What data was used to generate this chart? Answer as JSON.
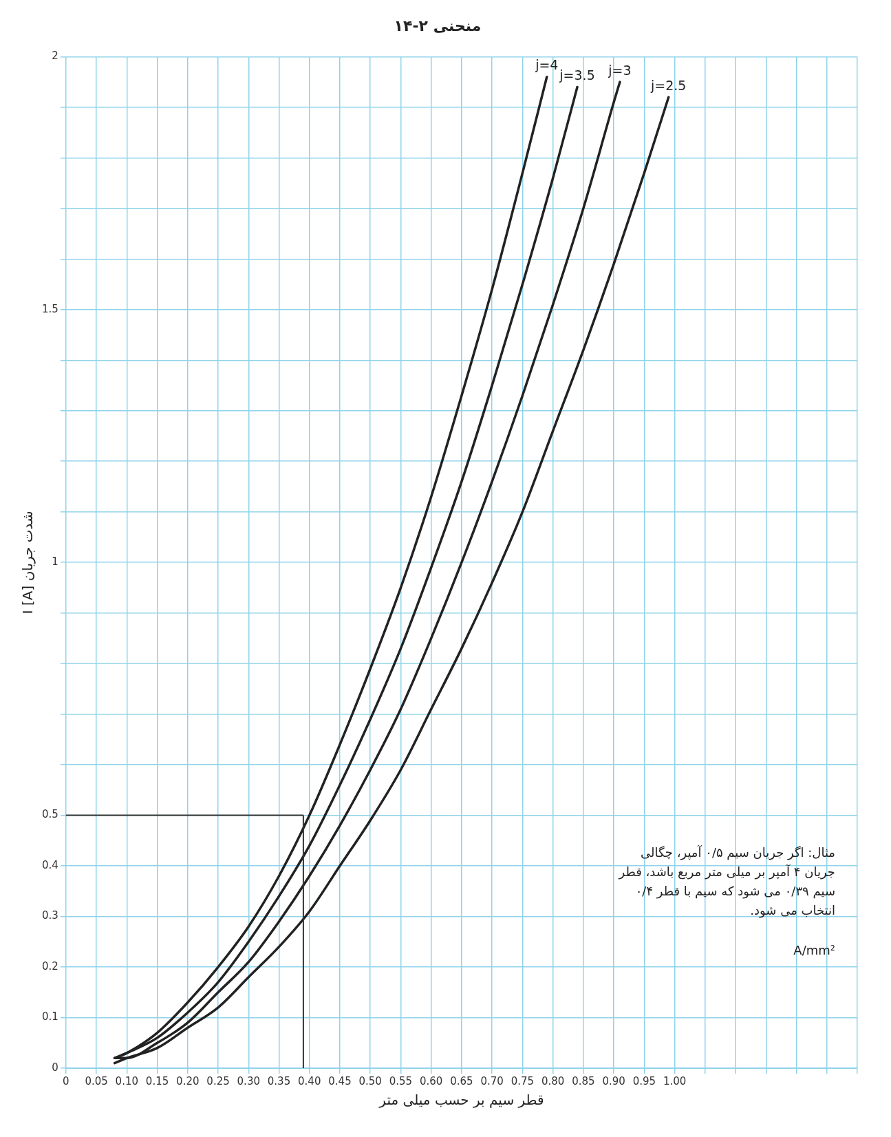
{
  "chart_data": {
    "type": "line",
    "title": "منحنی ۲-۱۴",
    "xlabel": "قطر سیم بر حسب میلی متر",
    "ylabel": "I [A] شدت جریان",
    "annotations": [
      "مثال: اگر جریان سیم ۰/۵ آمپر، چگالی جریان ۴ آمپر بر میلی متر مربع باشد، قطر سیم ۰/۳۹ می شود که سیم با قطر ۰/۴ انتخاب می شود.",
      "A/mm²"
    ],
    "xlim": [
      0,
      1.3
    ],
    "xticks": [
      0,
      {
        "value": 0.05,
        "label": "0.05"
      },
      {
        "value": 0.1,
        "label": "0.10"
      },
      0.15,
      {
        "value": 0.2,
        "label": "0.20"
      },
      0.25,
      {
        "value": 0.3,
        "label": "0.30"
      },
      0.35,
      {
        "value": 0.4,
        "label": "0.40"
      },
      0.45,
      {
        "value": 0.5,
        "label": "0.50"
      },
      0.55,
      {
        "value": 0.6,
        "label": "0.60"
      },
      0.65,
      {
        "value": 0.7,
        "label": "0.70"
      },
      0.75,
      {
        "value": 0.8,
        "label": "0.80"
      },
      0.85,
      {
        "value": 0.9,
        "label": "0.90"
      },
      0.95,
      {
        "value": 1,
        "label": "1.00"
      },
      {
        "value": 1.05,
        "label": null
      },
      {
        "value": 1.1,
        "label": null
      },
      {
        "value": 1.15,
        "label": null
      },
      {
        "value": 1.2,
        "label": null
      },
      {
        "value": 1.25,
        "label": null
      },
      {
        "value": 1.3,
        "label": null
      }
    ],
    "ylim": [
      0,
      2
    ],
    "yticks": [
      0,
      0.1,
      0.2,
      0.3,
      0.4,
      0.5,
      {
        "value": 0.6,
        "label": null
      },
      {
        "value": 0.7,
        "label": null
      },
      {
        "value": 0.8,
        "label": null
      },
      {
        "value": 0.9,
        "label": null
      },
      1,
      {
        "value": 1.1,
        "label": null
      },
      {
        "value": 1.2,
        "label": null
      },
      {
        "value": 1.3,
        "label": null
      },
      {
        "value": 1.4,
        "label": null
      },
      1.5,
      {
        "value": 1.6,
        "label": null
      },
      {
        "value": 1.7,
        "label": null
      },
      {
        "value": 1.8,
        "label": null
      },
      {
        "value": 1.9,
        "label": null
      },
      2
    ],
    "grid": true,
    "legend": false,
    "marker": "none",
    "line_style": "solid",
    "ref_lines": [
      {
        "axis": "x",
        "value": 0.39,
        "color": "#333333"
      },
      {
        "axis": "y",
        "value": 0.5,
        "color": "#333333"
      }
    ],
    "series": [
      {
        "name": "j=4",
        "color": "#222222",
        "x": [
          0.08,
          0.1,
          0.15,
          0.2,
          0.25,
          0.3,
          0.35,
          0.4,
          0.45,
          0.5,
          0.55,
          0.6,
          0.65,
          0.7,
          0.75,
          0.79
        ],
        "values": [
          0.02,
          0.03,
          0.07,
          0.13,
          0.2,
          0.28,
          0.38,
          0.5,
          0.64,
          0.79,
          0.95,
          1.13,
          1.33,
          1.54,
          1.77,
          1.96
        ]
      },
      {
        "name": "j=3.5",
        "color": "#222222",
        "x": [
          0.08,
          0.1,
          0.15,
          0.2,
          0.25,
          0.3,
          0.35,
          0.4,
          0.45,
          0.5,
          0.55,
          0.6,
          0.65,
          0.7,
          0.75,
          0.8,
          0.84
        ],
        "values": [
          0.02,
          0.03,
          0.06,
          0.11,
          0.17,
          0.25,
          0.34,
          0.44,
          0.56,
          0.69,
          0.83,
          0.99,
          1.16,
          1.35,
          1.55,
          1.76,
          1.94
        ]
      },
      {
        "name": "j=3",
        "color": "#222222",
        "x": [
          0.08,
          0.1,
          0.15,
          0.2,
          0.25,
          0.3,
          0.35,
          0.4,
          0.45,
          0.5,
          0.55,
          0.6,
          0.65,
          0.7,
          0.75,
          0.8,
          0.85,
          0.9,
          0.91
        ],
        "values": [
          0.02,
          0.02,
          0.05,
          0.09,
          0.15,
          0.21,
          0.29,
          0.38,
          0.48,
          0.59,
          0.71,
          0.85,
          1,
          1.16,
          1.33,
          1.51,
          1.7,
          1.91,
          1.95
        ]
      },
      {
        "name": "j=2.5",
        "color": "#222222",
        "x": [
          0.08,
          0.1,
          0.15,
          0.2,
          0.25,
          0.3,
          0.35,
          0.4,
          0.45,
          0.5,
          0.55,
          0.6,
          0.65,
          0.7,
          0.75,
          0.8,
          0.85,
          0.9,
          0.95,
          0.99
        ],
        "values": [
          0.01,
          0.02,
          0.04,
          0.08,
          0.12,
          0.18,
          0.24,
          0.31,
          0.4,
          0.49,
          0.59,
          0.71,
          0.83,
          0.96,
          1.1,
          1.26,
          1.42,
          1.59,
          1.77,
          1.92
        ]
      }
    ]
  }
}
